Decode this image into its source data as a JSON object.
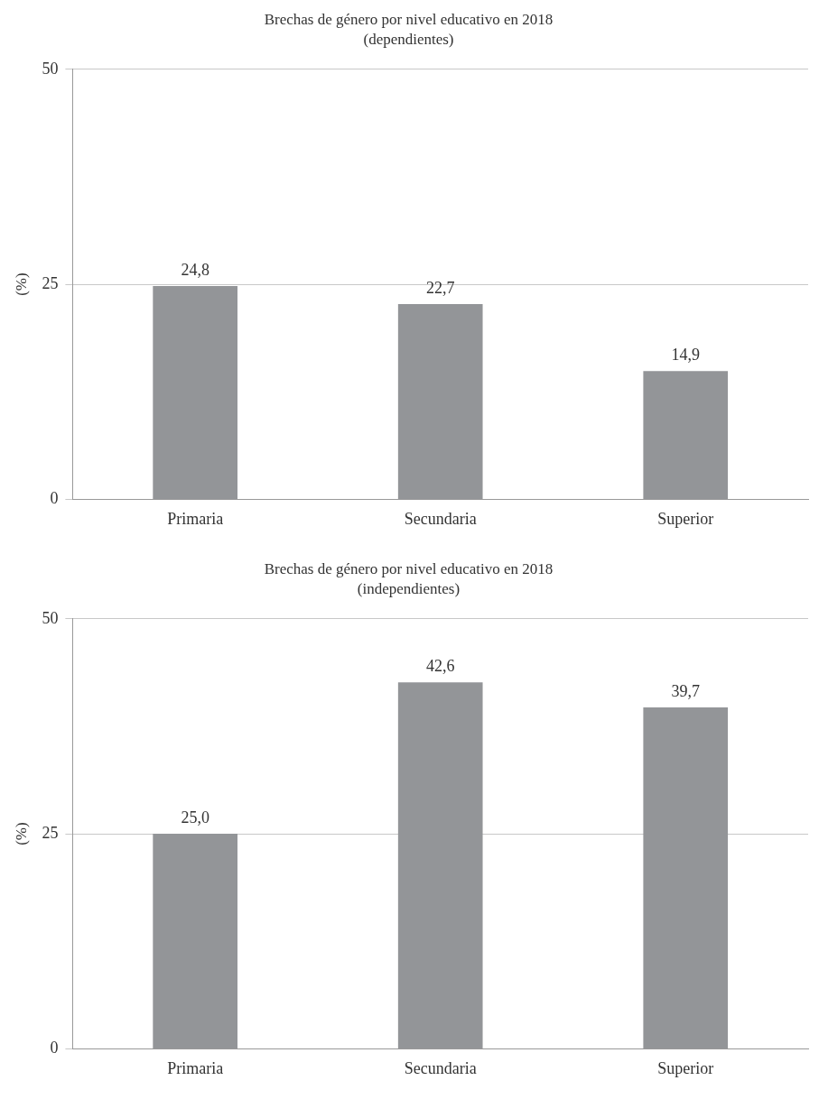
{
  "chart_data": [
    {
      "type": "bar",
      "title": "Brechas de género por nivel educativo en 2018",
      "subtitle": "(dependientes)",
      "ylabel": "(%)",
      "categories": [
        "Primaria",
        "Secundaria",
        "Superior"
      ],
      "values": [
        24.8,
        22.7,
        14.9
      ],
      "value_labels": [
        "24,8",
        "22,7",
        "14,9"
      ],
      "color": "#939598",
      "ylim": [
        0,
        50
      ],
      "yticks": [
        0,
        25,
        50
      ],
      "grid": "y",
      "legend": false
    },
    {
      "type": "bar",
      "title": "Brechas de género por nivel educativo en 2018",
      "subtitle": "(independientes)",
      "ylabel": "(%)",
      "categories": [
        "Primaria",
        "Secundaria",
        "Superior"
      ],
      "values": [
        25.0,
        42.6,
        39.7
      ],
      "value_labels": [
        "25,0",
        "42,6",
        "39,7"
      ],
      "color": "#939598",
      "ylim": [
        0,
        50
      ],
      "yticks": [
        0,
        25,
        50
      ],
      "grid": "y",
      "legend": false
    }
  ]
}
